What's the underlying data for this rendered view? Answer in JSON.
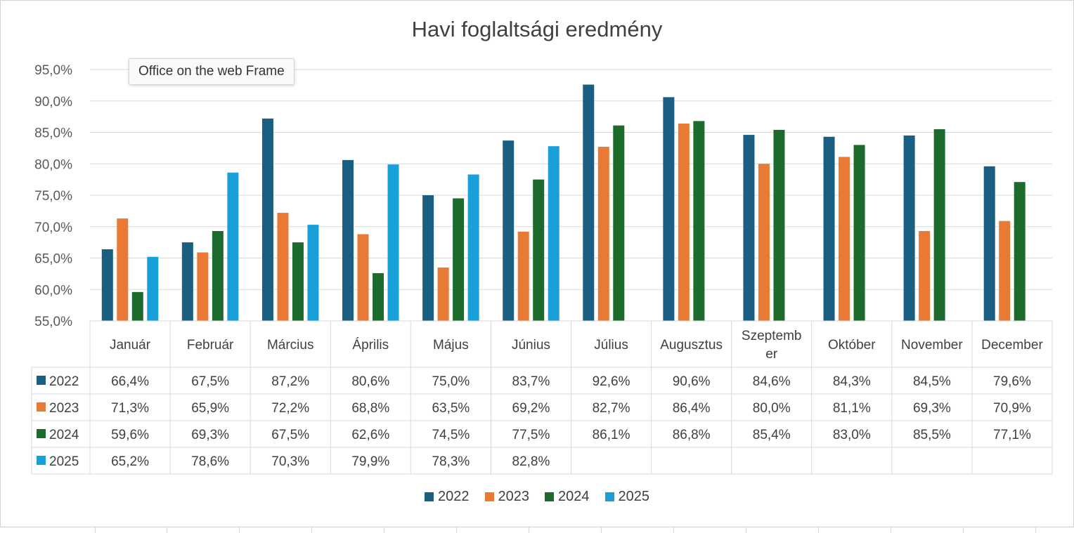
{
  "chart_data": {
    "type": "bar",
    "title": "Havi foglaltsági eredmény",
    "categories": [
      "Január",
      "Február",
      "Március",
      "Április",
      "Május",
      "Június",
      "Július",
      "Augusztus",
      "Szeptember",
      "Október",
      "November",
      "December"
    ],
    "category_lines": [
      [
        "Január"
      ],
      [
        "Február"
      ],
      [
        "Március"
      ],
      [
        "Április"
      ],
      [
        "Május"
      ],
      [
        "Június"
      ],
      [
        "Július"
      ],
      [
        "Augusztus"
      ],
      [
        "Szeptemb",
        "er"
      ],
      [
        "Október"
      ],
      [
        "November"
      ],
      [
        "December"
      ]
    ],
    "series": [
      {
        "name": "2022",
        "color": "#1a5e82",
        "values": [
          66.4,
          67.5,
          87.2,
          80.6,
          75.0,
          83.7,
          92.6,
          90.6,
          84.6,
          84.3,
          84.5,
          79.6
        ],
        "labels": [
          "66,4%",
          "67,5%",
          "87,2%",
          "80,6%",
          "75,0%",
          "83,7%",
          "92,6%",
          "90,6%",
          "84,6%",
          "84,3%",
          "84,5%",
          "79,6%"
        ]
      },
      {
        "name": "2023",
        "color": "#e87a36",
        "values": [
          71.3,
          65.9,
          72.2,
          68.8,
          63.5,
          69.2,
          82.7,
          86.4,
          80.0,
          81.1,
          69.3,
          70.9
        ],
        "labels": [
          "71,3%",
          "65,9%",
          "72,2%",
          "68,8%",
          "63,5%",
          "69,2%",
          "82,7%",
          "86,4%",
          "80,0%",
          "81,1%",
          "69,3%",
          "70,9%"
        ]
      },
      {
        "name": "2024",
        "color": "#1c6b2d",
        "values": [
          59.6,
          69.3,
          67.5,
          62.6,
          74.5,
          77.5,
          86.1,
          86.8,
          85.4,
          83.0,
          85.5,
          77.1
        ],
        "labels": [
          "59,6%",
          "69,3%",
          "67,5%",
          "62,6%",
          "74,5%",
          "77,5%",
          "86,1%",
          "86,8%",
          "85,4%",
          "83,0%",
          "85,5%",
          "77,1%"
        ]
      },
      {
        "name": "2025",
        "color": "#1aa0d8",
        "values": [
          65.2,
          78.6,
          70.3,
          79.9,
          78.3,
          82.8,
          null,
          null,
          null,
          null,
          null,
          null
        ],
        "labels": [
          "65,2%",
          "78,6%",
          "70,3%",
          "79,9%",
          "78,3%",
          "82,8%",
          "",
          "",
          "",
          "",
          "",
          ""
        ]
      }
    ],
    "ylim": [
      55,
      95
    ],
    "yticks": [
      {
        "value": 95,
        "label": "95,0%"
      },
      {
        "value": 90,
        "label": "90,0%"
      },
      {
        "value": 85,
        "label": "85,0%"
      },
      {
        "value": 80,
        "label": "80,0%"
      },
      {
        "value": 75,
        "label": "75,0%"
      },
      {
        "value": 70,
        "label": "70,0%"
      },
      {
        "value": 65,
        "label": "65,0%"
      },
      {
        "value": 60,
        "label": "60,0%"
      },
      {
        "value": 55,
        "label": "55,0%"
      }
    ],
    "grid": true,
    "legend_position": "bottom",
    "data_table": true
  },
  "tooltip": {
    "text": "Office on the web Frame"
  }
}
